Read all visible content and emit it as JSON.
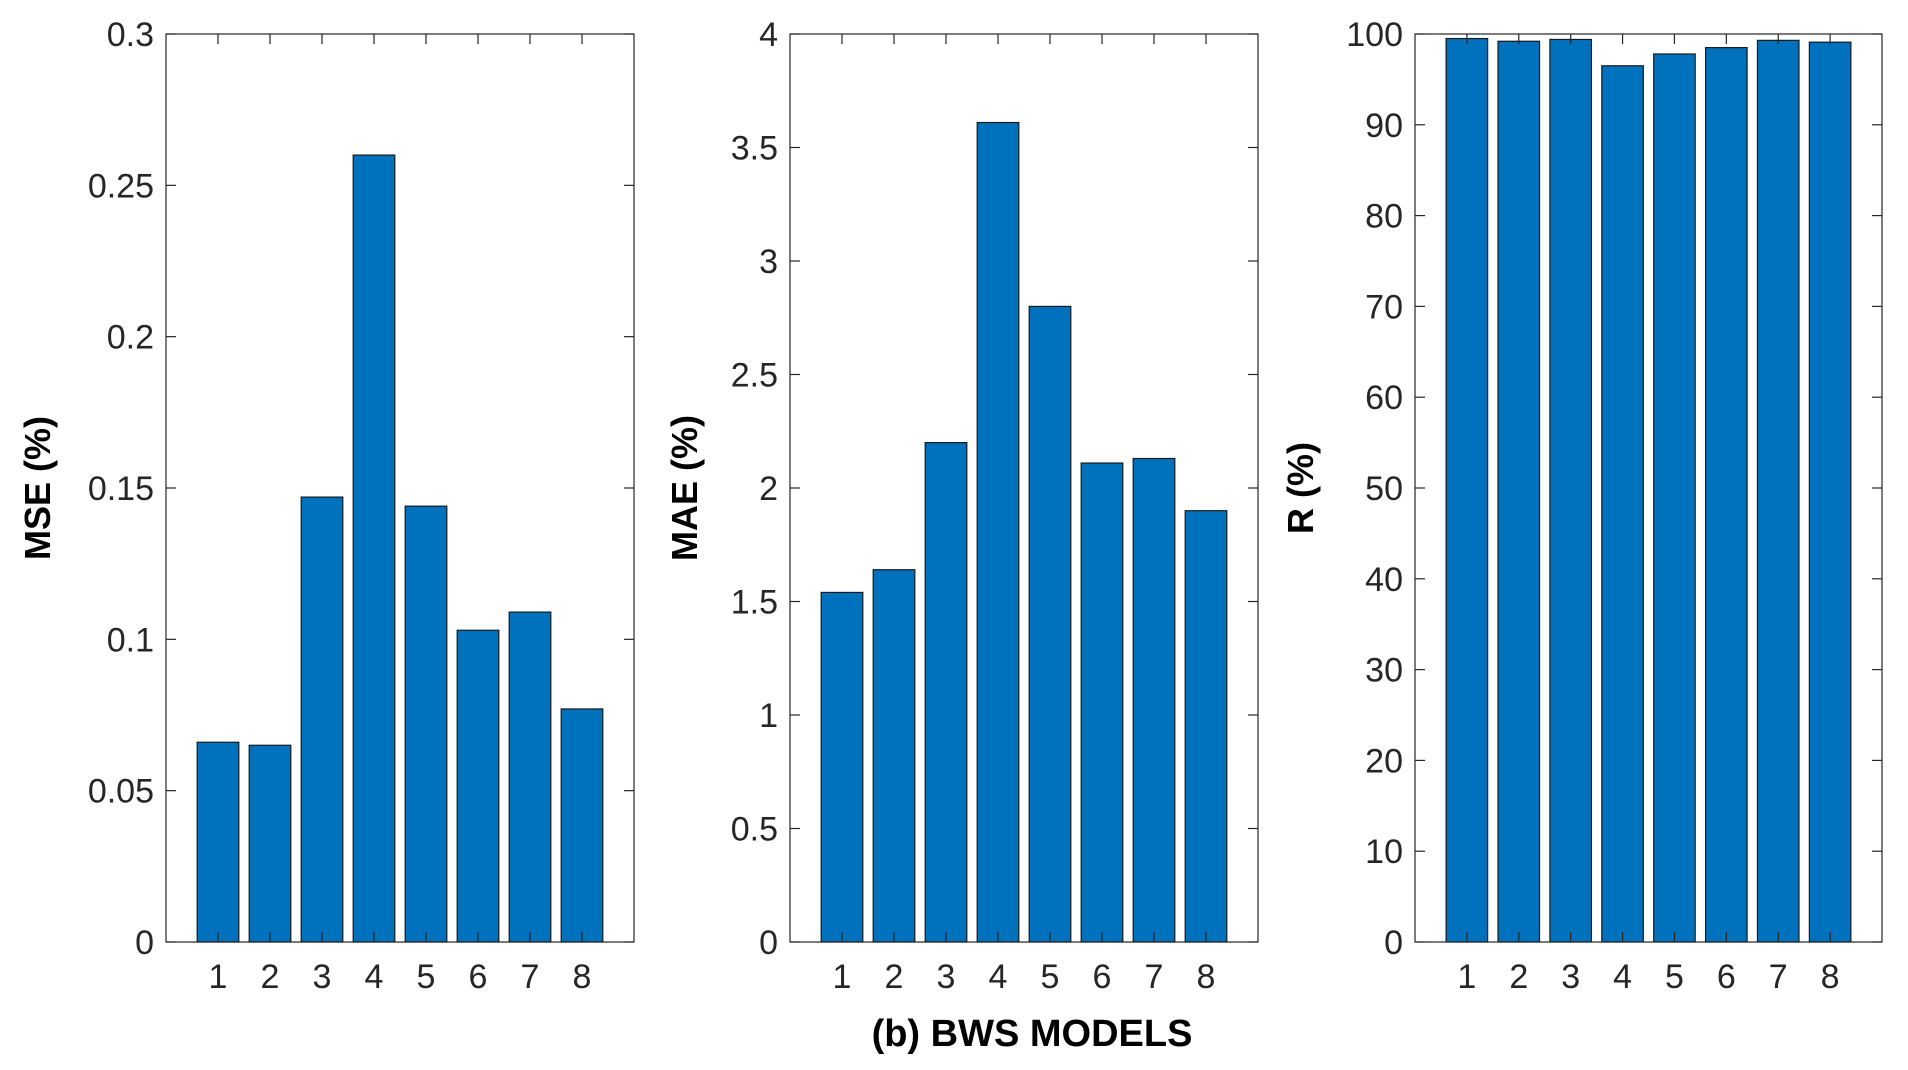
{
  "figure": {
    "xlabel": "(b) BWS MODELS",
    "bar_color": "#0072BD"
  },
  "chart_data": [
    {
      "type": "bar",
      "id": "mse",
      "categories": [
        "1",
        "2",
        "3",
        "4",
        "5",
        "6",
        "7",
        "8"
      ],
      "values": [
        0.066,
        0.065,
        0.147,
        0.26,
        0.144,
        0.103,
        0.109,
        0.077
      ],
      "ylabel": "MSE (%)",
      "xlabel": "",
      "ylim": [
        0,
        0.3
      ],
      "yticks": [
        0,
        0.05,
        0.1,
        0.15,
        0.2,
        0.25,
        0.3
      ],
      "ytick_labels": [
        "0",
        "0.05",
        "0.1",
        "0.15",
        "0.2",
        "0.25",
        "0.3"
      ],
      "grid": false
    },
    {
      "type": "bar",
      "id": "mae",
      "categories": [
        "1",
        "2",
        "3",
        "4",
        "5",
        "6",
        "7",
        "8"
      ],
      "values": [
        1.54,
        1.64,
        2.2,
        3.61,
        2.8,
        2.11,
        2.13,
        1.9
      ],
      "ylabel": "MAE (%)",
      "xlabel": "",
      "ylim": [
        0,
        4
      ],
      "yticks": [
        0,
        0.5,
        1,
        1.5,
        2,
        2.5,
        3,
        3.5,
        4
      ],
      "ytick_labels": [
        "0",
        "0.5",
        "1",
        "1.5",
        "2",
        "2.5",
        "3",
        "3.5",
        "4"
      ],
      "grid": false
    },
    {
      "type": "bar",
      "id": "r",
      "categories": [
        "1",
        "2",
        "3",
        "4",
        "5",
        "6",
        "7",
        "8"
      ],
      "values": [
        99.5,
        99.2,
        99.4,
        96.5,
        97.8,
        98.5,
        99.3,
        99.1
      ],
      "ylabel": "R (%)",
      "xlabel": "",
      "ylim": [
        0,
        100
      ],
      "yticks": [
        0,
        10,
        20,
        30,
        40,
        50,
        60,
        70,
        80,
        90,
        100
      ],
      "ytick_labels": [
        "0",
        "10",
        "20",
        "30",
        "40",
        "50",
        "60",
        "70",
        "80",
        "90",
        "100"
      ],
      "grid": false
    }
  ]
}
